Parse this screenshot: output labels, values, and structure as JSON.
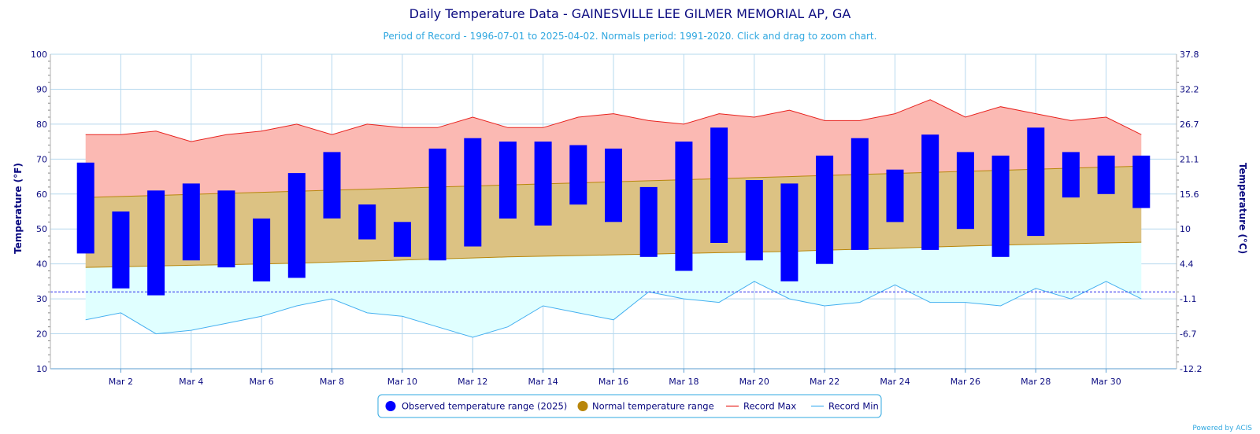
{
  "title": "Daily Temperature Data - GAINESVILLE LEE GILMER MEMORIAL AP, GA",
  "subtitle": "Period of Record - 1996-07-01 to 2025-04-02. Normals period: 1991-2020. Click and drag to zoom chart.",
  "credit": "Powered by ACIS",
  "colors": {
    "observed": "#0000ff",
    "normal": "#b8860b",
    "normal_fill": "#dcc283",
    "record_max": "#e8221e",
    "record_max_fill": "#fbb9b3",
    "record_min": "#45b0f0",
    "record_min_fill": "#e0ffff",
    "freeze_line": "#2a2aee",
    "text": "#0a0a80",
    "grid": "#b6d8ee"
  },
  "chart_data": {
    "type": "bar",
    "x": [
      1,
      2,
      3,
      4,
      5,
      6,
      7,
      8,
      9,
      10,
      11,
      12,
      13,
      14,
      15,
      16,
      17,
      18,
      19,
      20,
      21,
      22,
      23,
      24,
      25,
      26,
      27,
      28,
      29,
      30,
      31
    ],
    "xticks": [
      2,
      4,
      6,
      8,
      10,
      12,
      14,
      16,
      18,
      20,
      22,
      24,
      26,
      28,
      30
    ],
    "xtick_labels": [
      "Mar 2",
      "Mar 4",
      "Mar 6",
      "Mar 8",
      "Mar 10",
      "Mar 12",
      "Mar 14",
      "Mar 16",
      "Mar 18",
      "Mar 20",
      "Mar 22",
      "Mar 24",
      "Mar 26",
      "Mar 28",
      "Mar 30"
    ],
    "xlim": [
      0,
      32
    ],
    "ylabel": "Temperature (°F)",
    "ylabel_right": "Temperature (°C)",
    "ylim": [
      10,
      100
    ],
    "yticks": [
      10,
      20,
      30,
      40,
      50,
      60,
      70,
      80,
      90,
      100
    ],
    "yticks_right": [
      "-12.2",
      "-6.7",
      "-1.1",
      "4.4",
      "10",
      "15.6",
      "21.1",
      "26.7",
      "32.2",
      "37.8"
    ],
    "freezing_line": 32,
    "grid": true,
    "legend_position": "bottom-center",
    "series": [
      {
        "name": "Observed temperature range (2025)",
        "low": [
          43,
          33,
          31,
          41,
          39,
          35,
          36,
          53,
          47,
          42,
          41,
          45,
          53,
          51,
          57,
          52,
          42,
          38,
          46,
          41,
          35,
          40,
          44,
          52,
          44,
          50,
          42,
          48,
          59,
          60,
          56
        ],
        "high": [
          69,
          55,
          61,
          63,
          61,
          53,
          66,
          72,
          57,
          52,
          73,
          76,
          75,
          75,
          74,
          73,
          62,
          75,
          79,
          64,
          63,
          71,
          76,
          67,
          77,
          72,
          71,
          79,
          72,
          71,
          71
        ]
      },
      {
        "name": "Normal temperature range",
        "low": [
          39,
          39.2,
          39.4,
          39.6,
          39.8,
          40,
          40.2,
          40.5,
          40.8,
          41.1,
          41.4,
          41.7,
          42,
          42.2,
          42.4,
          42.6,
          42.8,
          43,
          43.2,
          43.4,
          43.6,
          43.9,
          44.2,
          44.5,
          44.8,
          45.1,
          45.4,
          45.6,
          45.8,
          46,
          46.2
        ],
        "high": [
          59,
          59.3,
          59.6,
          59.9,
          60.2,
          60.5,
          60.8,
          61.1,
          61.4,
          61.7,
          62,
          62.3,
          62.6,
          62.9,
          63.2,
          63.5,
          63.8,
          64.1,
          64.4,
          64.7,
          65,
          65.3,
          65.6,
          65.9,
          66.2,
          66.5,
          66.8,
          67.1,
          67.4,
          67.7,
          68
        ]
      },
      {
        "name": "Record Max",
        "values": [
          77,
          77,
          78,
          75,
          77,
          78,
          80,
          77,
          80,
          79,
          79,
          82,
          79,
          79,
          82,
          83,
          81,
          80,
          83,
          82,
          84,
          81,
          81,
          83,
          87,
          82,
          85,
          83,
          81,
          82,
          77
        ]
      },
      {
        "name": "Record Min",
        "values": [
          24,
          26,
          20,
          21,
          23,
          25,
          28,
          30,
          26,
          25,
          22,
          19,
          22,
          28,
          26,
          24,
          32,
          30,
          29,
          35,
          30,
          28,
          29,
          34,
          29,
          29,
          28,
          33,
          30,
          35,
          30
        ]
      }
    ]
  }
}
